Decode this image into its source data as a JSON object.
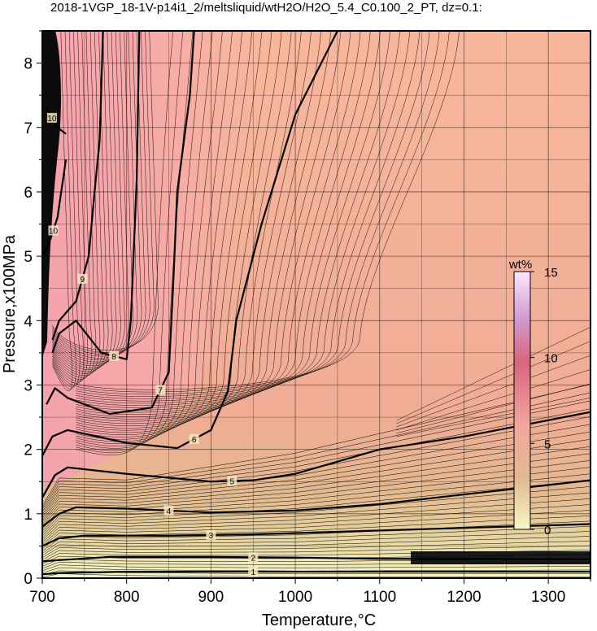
{
  "chart_data": {
    "type": "contour",
    "title": "2018-1VGP_18-1V-p14i1_2/meltsliquid/wtH2O/H2O_5.4_C0.100_2_PT, dz=0.1:",
    "xlabel": "Temperature,°C",
    "ylabel": "Pressure,x100MPa",
    "xlim": [
      700,
      1350
    ],
    "ylim": [
      0,
      8.5
    ],
    "x_ticks": [
      "700",
      "800",
      "900",
      "1000",
      "1100",
      "1200",
      "1300"
    ],
    "y_ticks": [
      "0",
      "1",
      "2",
      "3",
      "4",
      "5",
      "6",
      "7",
      "8"
    ],
    "grid": true,
    "colorbar": {
      "title": "wt%",
      "range": [
        0,
        15
      ],
      "ticks": [
        "0",
        "5",
        "10",
        "15"
      ],
      "placement": "right-inside",
      "colors": [
        "#f6f7c4",
        "#e0b993",
        "#f3a79d",
        "#d9647f",
        "#d29bd0",
        "#fde6ff"
      ]
    },
    "bold_contours": [
      {
        "level": 1,
        "label": "1",
        "x": [
          700,
          720,
          800,
          900,
          1000,
          1100,
          1200,
          1350
        ],
        "y": [
          0.06,
          0.08,
          0.1,
          0.1,
          0.1,
          0.1,
          0.1,
          0.1
        ]
      },
      {
        "level": 2,
        "label": "2",
        "x": [
          700,
          720,
          780,
          900,
          1000,
          1100,
          1200,
          1350
        ],
        "y": [
          0.26,
          0.28,
          0.33,
          0.33,
          0.32,
          0.3,
          0.3,
          0.29
        ]
      },
      {
        "level": 3,
        "label": "3",
        "x": [
          700,
          720,
          750,
          850,
          950,
          1050,
          1150,
          1250,
          1350
        ],
        "y": [
          0.5,
          0.62,
          0.66,
          0.66,
          0.68,
          0.72,
          0.76,
          0.8,
          0.84
        ]
      },
      {
        "level": 4,
        "label": "4",
        "x": [
          700,
          720,
          740,
          800,
          900,
          1000,
          1100,
          1200,
          1350
        ],
        "y": [
          0.8,
          1.0,
          1.1,
          1.08,
          1.02,
          1.05,
          1.15,
          1.3,
          1.52
        ]
      },
      {
        "level": 5,
        "label": "5",
        "x": [
          700,
          715,
          730,
          800,
          900,
          950,
          1000,
          1100,
          1200,
          1350
        ],
        "y": [
          1.25,
          1.6,
          1.72,
          1.62,
          1.5,
          1.52,
          1.62,
          2.0,
          2.2,
          2.58
        ]
      },
      {
        "level": 6,
        "label": "6",
        "x": [
          700,
          712,
          730,
          800,
          860,
          900,
          920,
          930,
          960,
          1000,
          1050
        ],
        "y": [
          1.9,
          2.2,
          2.3,
          2.1,
          2.02,
          2.3,
          2.9,
          4.0,
          5.5,
          7.2,
          8.5
        ]
      },
      {
        "level": 7,
        "label": "7",
        "x": [
          705,
          715,
          730,
          780,
          830,
          850,
          855,
          860,
          875,
          880
        ],
        "y": [
          2.7,
          2.95,
          2.8,
          2.55,
          2.65,
          3.2,
          4.5,
          6.0,
          7.5,
          8.5
        ]
      },
      {
        "level": 8,
        "label": "8",
        "x": [
          712,
          720,
          740,
          770,
          800,
          805,
          812,
          815
        ],
        "y": [
          3.5,
          3.8,
          4.0,
          3.5,
          3.4,
          4.0,
          6.2,
          8.5
        ]
      },
      {
        "level": 9,
        "label": "9",
        "x": [
          712,
          720,
          740,
          755,
          762,
          768,
          772
        ],
        "y": [
          3.7,
          4.0,
          4.3,
          5.0,
          6.0,
          6.8,
          8.5
        ]
      },
      {
        "level": 10,
        "label": "10",
        "x": [
          700,
          708,
          718,
          728
        ],
        "y": [
          5.0,
          5.2,
          5.6,
          6.5
        ]
      },
      {
        "level": 10,
        "label": "10",
        "x": [
          705,
          718,
          728
        ],
        "y": [
          7.3,
          7.0,
          6.9
        ]
      }
    ]
  }
}
